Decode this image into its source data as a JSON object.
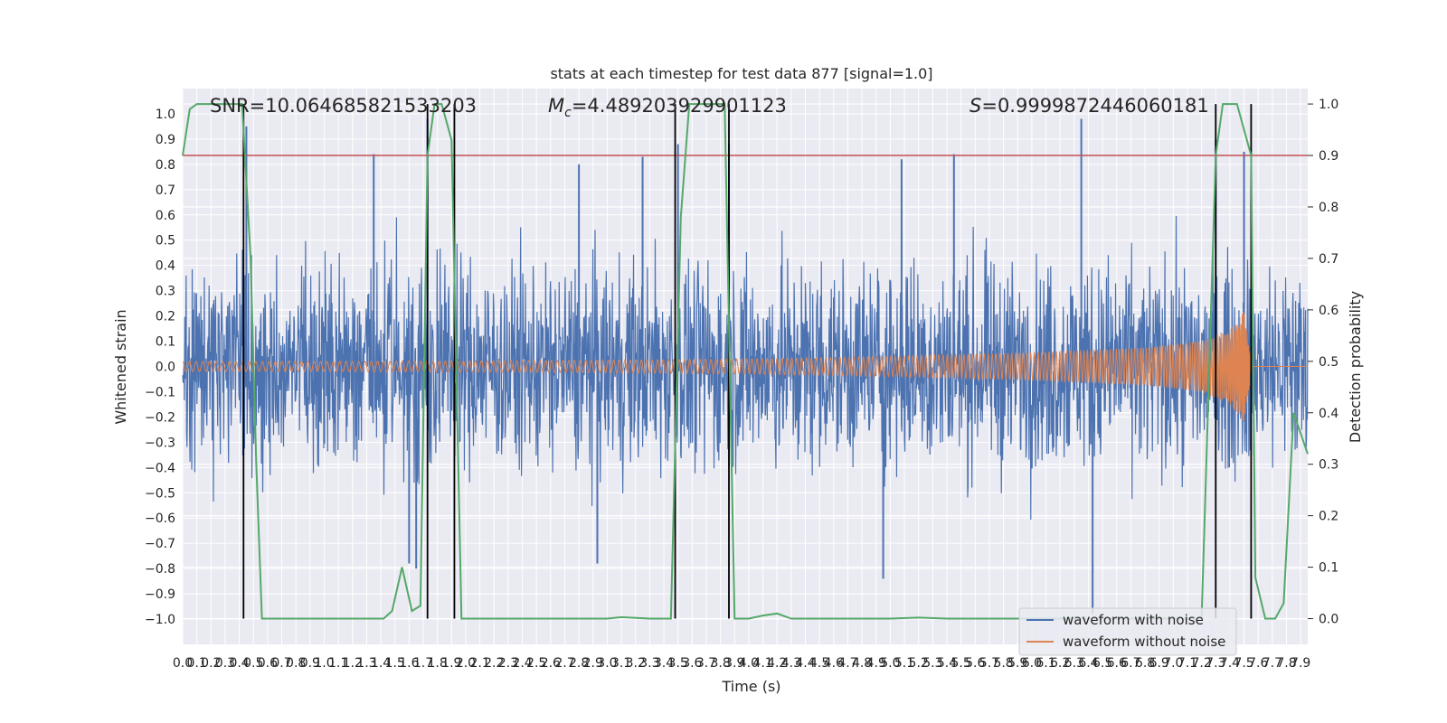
{
  "chart_data": {
    "type": "line",
    "title": "stats at each timestep for test data 877 [signal=1.0]",
    "xlabel": "Time (s)",
    "ylabel": "Whitened strain",
    "y2label": "Detection probability",
    "annotations": {
      "snr": "SNR=10.064685821533203",
      "mc": "=4.489203929901123",
      "mc_symbol": "M",
      "mc_sub": "c",
      "s": "=0.9999872446060181",
      "s_symbol": "S"
    },
    "xlim": [
      0.0,
      7.95
    ],
    "ylim": [
      -1.1,
      1.1
    ],
    "y2lim": [
      -0.05,
      1.03
    ],
    "x_ticks": [
      "0.0",
      "0.1",
      "0.2",
      "0.3",
      "0.4",
      "0.5",
      "0.6",
      "0.7",
      "0.8",
      "0.9",
      "1.0",
      "1.1",
      "1.2",
      "1.3",
      "1.4",
      "1.5",
      "1.6",
      "1.7",
      "1.8",
      "1.9",
      "2.0",
      "2.1",
      "2.2",
      "2.3",
      "2.4",
      "2.5",
      "2.6",
      "2.7",
      "2.8",
      "2.9",
      "3.0",
      "3.1",
      "3.2",
      "3.3",
      "3.4",
      "3.5",
      "3.6",
      "3.7",
      "3.8",
      "3.9",
      "4.0",
      "4.1",
      "4.2",
      "4.3",
      "4.4",
      "4.5",
      "4.6",
      "4.7",
      "4.8",
      "4.9",
      "5.0",
      "5.1",
      "5.2",
      "5.3",
      "5.4",
      "5.5",
      "5.6",
      "5.7",
      "5.8",
      "5.9",
      "6.0",
      "6.1",
      "6.2",
      "6.3",
      "6.4",
      "6.5",
      "6.6",
      "6.7",
      "6.8",
      "6.9",
      "7.0",
      "7.1",
      "7.2",
      "7.3",
      "7.4",
      "7.5",
      "7.6",
      "7.7",
      "7.8",
      "7.9"
    ],
    "y_ticks": [
      "1.0",
      "0.9",
      "0.8",
      "0.7",
      "0.6",
      "0.5",
      "0.4",
      "0.3",
      "0.2",
      "0.1",
      "0.0",
      "−0.1",
      "−0.2",
      "−0.3",
      "−0.4",
      "−0.5",
      "−0.6",
      "−0.7",
      "−0.8",
      "−0.9",
      "−1.0"
    ],
    "y2_ticks": [
      "1.0",
      "0.9",
      "0.8",
      "0.7",
      "0.6",
      "0.5",
      "0.4",
      "0.3",
      "0.2",
      "0.1",
      "0.0"
    ],
    "threshold": {
      "value": 0.9,
      "axis": "right",
      "color": "#c44e52"
    },
    "event_lines_x": [
      0.43,
      1.73,
      1.92,
      3.48,
      3.86,
      7.3,
      7.55
    ],
    "grid": true,
    "legend_position": "lower right",
    "series": [
      {
        "name": "waveform with noise",
        "color": "#4c72b0",
        "axis": "left",
        "description_envelope": {
          "upper_typical": 0.45,
          "lower_typical": -0.45
        },
        "peaks": [
          {
            "x": 0.45,
            "y": 0.95
          },
          {
            "x": 1.35,
            "y": 0.84
          },
          {
            "x": 1.73,
            "y": 0.98
          },
          {
            "x": 2.8,
            "y": 0.8
          },
          {
            "x": 3.25,
            "y": 0.83
          },
          {
            "x": 3.5,
            "y": 0.88
          },
          {
            "x": 3.86,
            "y": 0.88
          },
          {
            "x": 5.08,
            "y": 0.82
          },
          {
            "x": 5.45,
            "y": 0.84
          },
          {
            "x": 6.35,
            "y": 0.98
          },
          {
            "x": 7.3,
            "y": 0.9
          },
          {
            "x": 7.5,
            "y": 0.85
          },
          {
            "x": 2.93,
            "y": -0.78
          },
          {
            "x": 4.95,
            "y": -0.84
          },
          {
            "x": 6.43,
            "y": -0.98
          },
          {
            "x": 1.65,
            "y": -0.8
          },
          {
            "x": 1.6,
            "y": -0.78
          }
        ]
      },
      {
        "name": "waveform without noise",
        "color": "#dd8452",
        "axis": "left",
        "amplitude_profile": [
          {
            "x": 0.0,
            "a": 0.02
          },
          {
            "x": 1.0,
            "a": 0.02
          },
          {
            "x": 2.0,
            "a": 0.022
          },
          {
            "x": 3.0,
            "a": 0.025
          },
          {
            "x": 4.0,
            "a": 0.03
          },
          {
            "x": 5.0,
            "a": 0.04
          },
          {
            "x": 6.0,
            "a": 0.055
          },
          {
            "x": 6.8,
            "a": 0.075
          },
          {
            "x": 7.2,
            "a": 0.1
          },
          {
            "x": 7.4,
            "a": 0.15
          },
          {
            "x": 7.5,
            "a": 0.22
          },
          {
            "x": 7.56,
            "a": 0.0
          },
          {
            "x": 7.95,
            "a": 0.0
          }
        ]
      },
      {
        "name": "detection probability",
        "color": "#55a868",
        "axis": "right",
        "points": [
          [
            0.0,
            0.9
          ],
          [
            0.05,
            0.99
          ],
          [
            0.1,
            1.0
          ],
          [
            0.42,
            1.0
          ],
          [
            0.48,
            0.7
          ],
          [
            0.52,
            0.3
          ],
          [
            0.56,
            0.0
          ],
          [
            1.42,
            0.0
          ],
          [
            1.48,
            0.015
          ],
          [
            1.55,
            0.1
          ],
          [
            1.62,
            0.015
          ],
          [
            1.68,
            0.025
          ],
          [
            1.73,
            0.9
          ],
          [
            1.78,
            1.0
          ],
          [
            1.83,
            1.0
          ],
          [
            1.9,
            0.93
          ],
          [
            1.97,
            0.0
          ],
          [
            3.0,
            0.0
          ],
          [
            3.1,
            0.003
          ],
          [
            3.3,
            0.0
          ],
          [
            3.45,
            0.0
          ],
          [
            3.52,
            0.78
          ],
          [
            3.58,
            1.0
          ],
          [
            3.83,
            1.0
          ],
          [
            3.9,
            0.0
          ],
          [
            4.0,
            0.0
          ],
          [
            4.1,
            0.006
          ],
          [
            4.2,
            0.01
          ],
          [
            4.3,
            0.0
          ],
          [
            5.0,
            0.0
          ],
          [
            5.2,
            0.002
          ],
          [
            5.4,
            0.0
          ],
          [
            7.2,
            0.0
          ],
          [
            7.3,
            0.9
          ],
          [
            7.35,
            1.0
          ],
          [
            7.45,
            1.0
          ],
          [
            7.55,
            0.9
          ],
          [
            7.58,
            0.08
          ],
          [
            7.65,
            0.0
          ],
          [
            7.72,
            0.0
          ],
          [
            7.78,
            0.03
          ],
          [
            7.85,
            0.4
          ],
          [
            7.9,
            0.36
          ],
          [
            7.95,
            0.32
          ]
        ]
      }
    ]
  }
}
